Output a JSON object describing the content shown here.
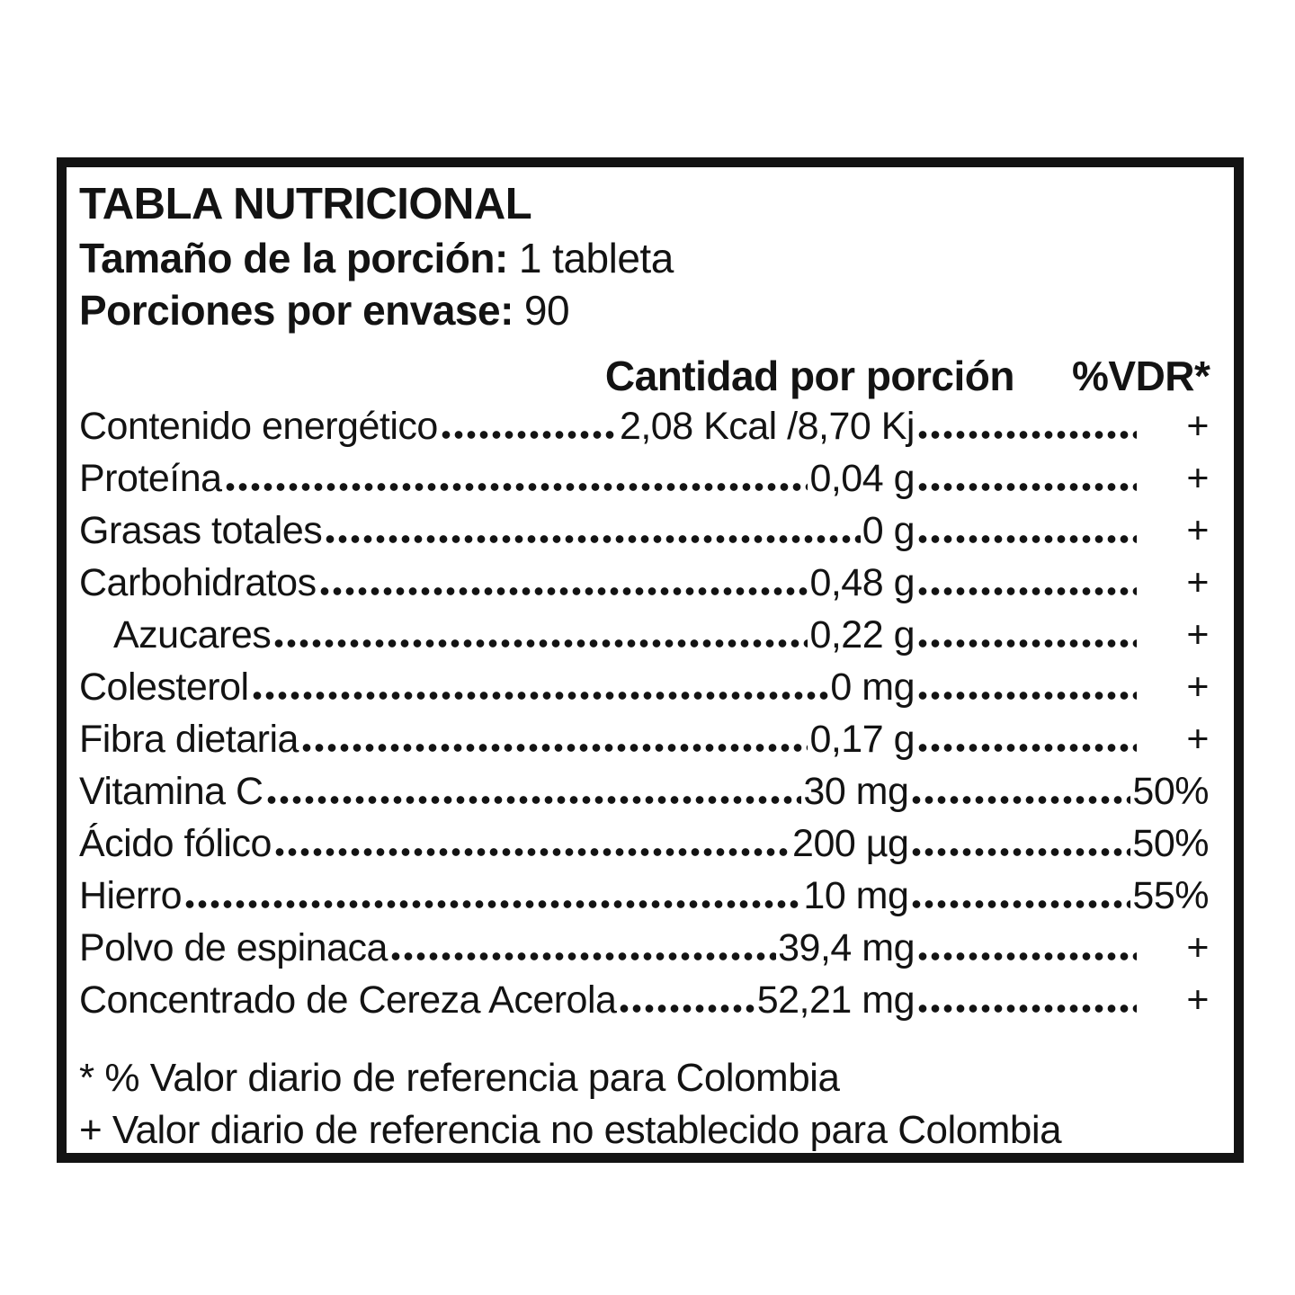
{
  "label": {
    "title": "TABLA NUTRICIONAL",
    "serving_size_label": "Tamaño de la porción:",
    "serving_size_value": "1 tableta",
    "servings_per_container_label": "Porciones por envase:",
    "servings_per_container_value": "90",
    "columns": {
      "amount": "Cantidad por porción",
      "vdr": "%VDR*"
    },
    "rows": [
      {
        "name": "Contenido energético",
        "amount": "2,08 Kcal /8,70 Kj",
        "vdr": "+",
        "indent": false
      },
      {
        "name": "Proteína",
        "amount": "0,04 g",
        "vdr": "+",
        "indent": false
      },
      {
        "name": "Grasas totales",
        "amount": "0 g",
        "vdr": "+",
        "indent": false
      },
      {
        "name": "Carbohidratos",
        "amount": "0,48 g",
        "vdr": "+",
        "indent": false
      },
      {
        "name": "Azucares",
        "amount": "0,22 g",
        "vdr": "+",
        "indent": true
      },
      {
        "name": "Colesterol",
        "amount": "0 mg",
        "vdr": "+",
        "indent": false
      },
      {
        "name": "Fibra dietaria",
        "amount": "0,17 g",
        "vdr": "+",
        "indent": false
      },
      {
        "name": "Vitamina C",
        "amount": "30 mg",
        "vdr": "50%",
        "indent": false
      },
      {
        "name": "Ácido fólico",
        "amount": "200 µg",
        "vdr": "50%",
        "indent": false
      },
      {
        "name": "Hierro",
        "amount": "10 mg",
        "vdr": "55%",
        "indent": false
      },
      {
        "name": "Polvo de espinaca",
        "amount": "39,4 mg",
        "vdr": "+",
        "indent": false
      },
      {
        "name": "Concentrado de Cereza Acerola",
        "amount": "52,21 mg",
        "vdr": "+",
        "indent": false
      }
    ],
    "footnotes": [
      "* % Valor diario de referencia para Colombia",
      "+ Valor diario de referencia no establecido para Colombia"
    ],
    "colors": {
      "text": "#131313",
      "border": "#131313",
      "background": "#ffffff"
    }
  }
}
